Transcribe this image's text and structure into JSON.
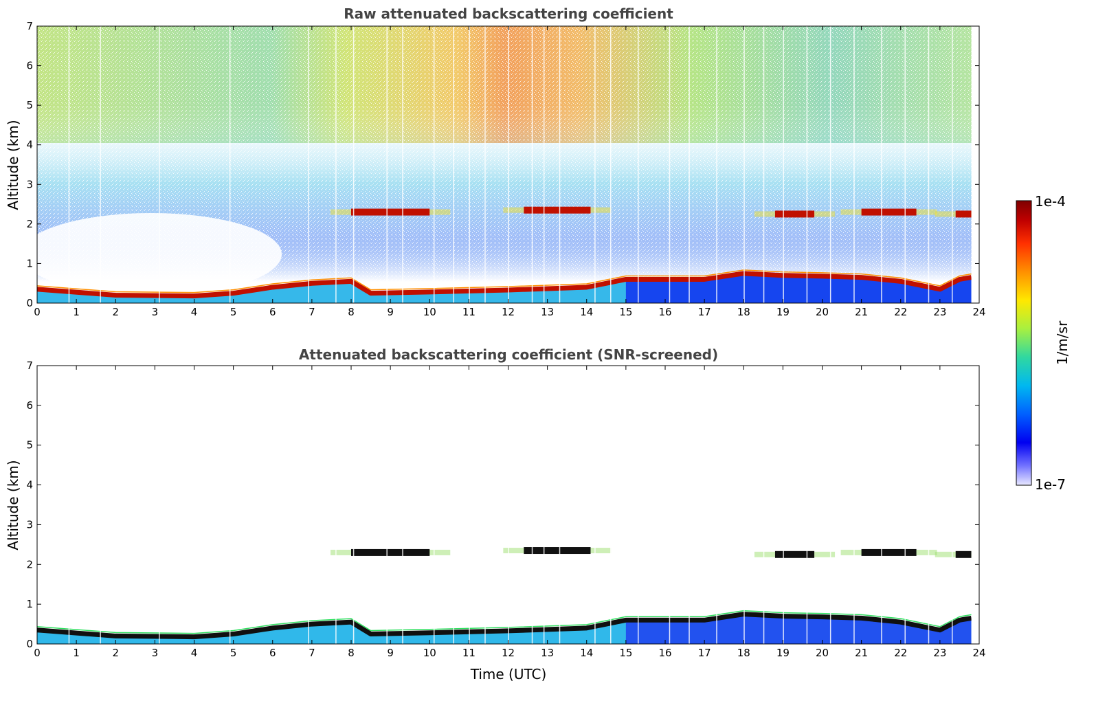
{
  "chart_data": [
    {
      "type": "heatmap",
      "title": "Raw attenuated backscattering coefficient",
      "xlabel": "",
      "ylabel": "Altitude (km)",
      "xlim": [
        0,
        24
      ],
      "ylim": [
        0,
        7
      ],
      "x_ticks": [
        "0",
        "1",
        "2",
        "3",
        "4",
        "5",
        "6",
        "7",
        "8",
        "9",
        "10",
        "11",
        "12",
        "13",
        "14",
        "15",
        "16",
        "17",
        "18",
        "19",
        "20",
        "21",
        "22",
        "23",
        "24"
      ],
      "y_ticks": [
        "0",
        "1",
        "2",
        "3",
        "4",
        "5",
        "6",
        "7"
      ],
      "boundary_layer_km": [
        [
          0,
          0.35
        ],
        [
          2,
          0.2
        ],
        [
          4,
          0.18
        ],
        [
          5,
          0.25
        ],
        [
          6,
          0.4
        ],
        [
          7,
          0.5
        ],
        [
          8,
          0.55
        ],
        [
          8.5,
          0.25
        ],
        [
          10,
          0.28
        ],
        [
          12,
          0.33
        ],
        [
          14,
          0.4
        ],
        [
          15,
          0.6
        ],
        [
          17,
          0.6
        ],
        [
          18,
          0.75
        ],
        [
          19,
          0.7
        ],
        [
          20,
          0.68
        ],
        [
          21,
          0.65
        ],
        [
          22,
          0.55
        ],
        [
          23,
          0.35
        ],
        [
          23.5,
          0.6
        ],
        [
          23.8,
          0.65
        ]
      ],
      "cloud_layers": [
        {
          "x_start": 8.0,
          "x_end": 10.0,
          "altitude_km": 2.3
        },
        {
          "x_start": 12.4,
          "x_end": 14.1,
          "altitude_km": 2.35
        },
        {
          "x_start": 18.8,
          "x_end": 19.8,
          "altitude_km": 2.25
        },
        {
          "x_start": 21.0,
          "x_end": 22.4,
          "altitude_km": 2.3
        },
        {
          "x_start": 23.4,
          "x_end": 23.8,
          "altitude_km": 2.25
        }
      ]
    },
    {
      "type": "heatmap",
      "title": "Attenuated backscattering coefficient (SNR-screened)",
      "xlabel": "Time (UTC)",
      "ylabel": "Altitude (km)",
      "xlim": [
        0,
        24
      ],
      "ylim": [
        0,
        7
      ],
      "x_ticks": [
        "0",
        "1",
        "2",
        "3",
        "4",
        "5",
        "6",
        "7",
        "8",
        "9",
        "10",
        "11",
        "12",
        "13",
        "14",
        "15",
        "16",
        "17",
        "18",
        "19",
        "20",
        "21",
        "22",
        "23",
        "24"
      ],
      "y_ticks": [
        "0",
        "1",
        "2",
        "3",
        "4",
        "5",
        "6",
        "7"
      ]
    }
  ],
  "colorbar": {
    "max_label": "1e-4",
    "min_label": "1e-7",
    "unit_label": "1/m/sr",
    "colors": [
      "#7f0000",
      "#b30000",
      "#e31a00",
      "#ff4500",
      "#ff8000",
      "#ffb000",
      "#ffe000",
      "#e8f000",
      "#b0f030",
      "#70e070",
      "#30d0a0",
      "#10c0d0",
      "#00a0ff",
      "#0060ff",
      "#0020ff",
      "#0000e0",
      "#6060ff",
      "#a0a0ff",
      "#d8d8ff"
    ]
  }
}
